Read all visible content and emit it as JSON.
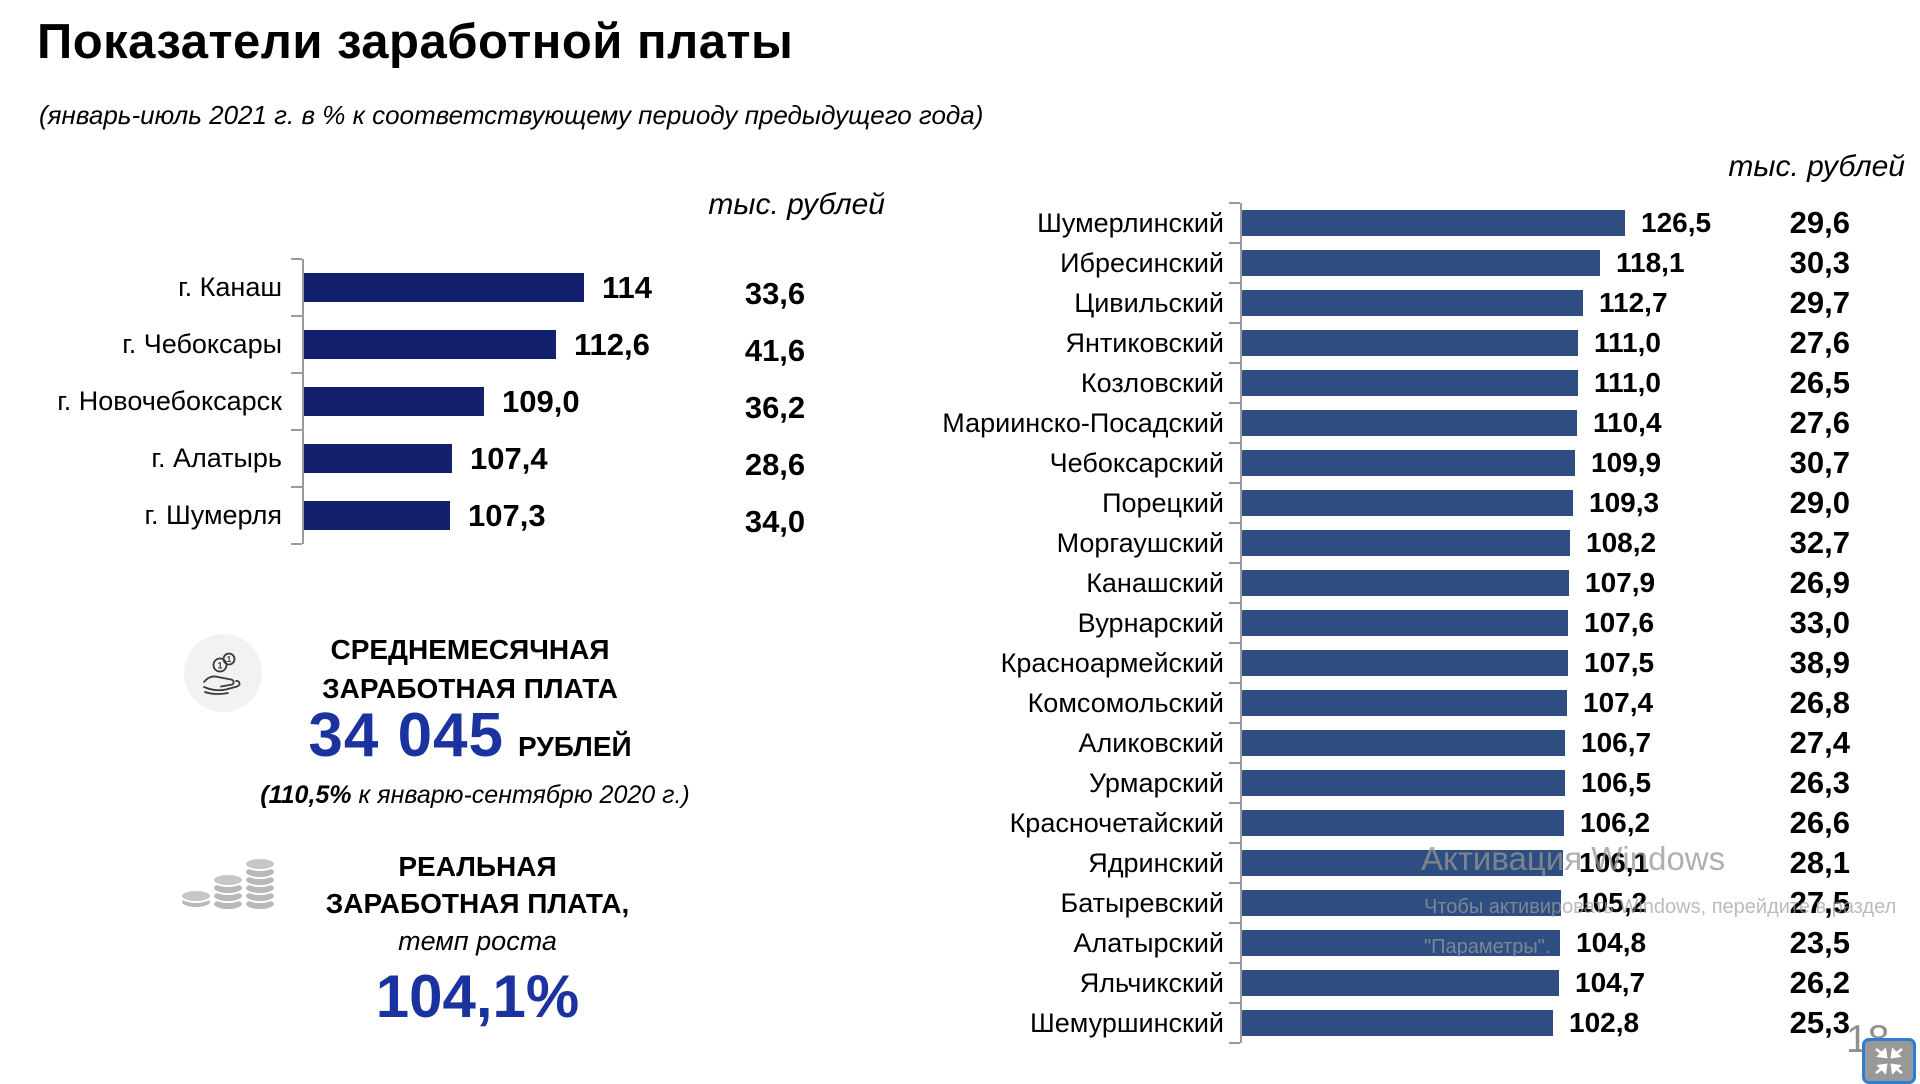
{
  "slide": {
    "title": "Показатели заработной платы",
    "subtitle": "(январь-июль 2021 г. в % к соответствующему периоду предыдущего года)",
    "page_number": "18"
  },
  "colors": {
    "accent_blue": "#1b339e",
    "bar_left": "#13206e",
    "bar_right": "#2e4d80",
    "axis_gray": "#9a9a9a"
  },
  "chart_data": [
    {
      "type": "bar",
      "orientation": "horizontal",
      "unit_header": "тыс. рублей",
      "axis_min": 100,
      "categories": [
        "г. Канаш",
        "г. Чебоксары",
        "г. Новочебоксарск",
        "г. Алатырь",
        "г. Шумерля"
      ],
      "series": [
        {
          "name": "январь-июль 2021 г. в % к соответствующему периоду предыдущего года",
          "values": [
            114,
            112.6,
            109.0,
            107.4,
            107.3
          ],
          "labels": [
            "114",
            "112,6",
            "109,0",
            "107,4",
            "107,3"
          ]
        },
        {
          "name": "среднемесячная заработная плата, тыс. рублей",
          "values": [
            33.6,
            41.6,
            36.2,
            28.6,
            34.0
          ],
          "labels": [
            "33,6",
            "41,6",
            "36,2",
            "28,6",
            "34,0"
          ]
        }
      ]
    },
    {
      "type": "bar",
      "orientation": "horizontal",
      "unit_header": "тыс. рублей",
      "axis_min": 0,
      "categories": [
        "Шумерлинский",
        "Ибресинский",
        "Цивильский",
        "Янтиковский",
        "Козловский",
        "Мариинско-Посадский",
        "Чебоксарский",
        "Порецкий",
        "Моргаушский",
        "Канашский",
        "Вурнарский",
        "Красноармейский",
        "Комсомольский",
        "Аликовский",
        "Урмарский",
        "Красночетайский",
        "Ядринский",
        "Батыревский",
        "Алатырский",
        "Яльчикский",
        "Шемуршинский"
      ],
      "series": [
        {
          "name": "январь-июль 2021 г. в % к соответствующему периоду предыдущего года",
          "values": [
            126.5,
            118.1,
            112.7,
            111.0,
            111.0,
            110.4,
            109.9,
            109.3,
            108.2,
            107.9,
            107.6,
            107.5,
            107.4,
            106.7,
            106.5,
            106.2,
            106.1,
            105.2,
            104.8,
            104.7,
            102.8
          ],
          "labels": [
            "126,5",
            "118,1",
            "112,7",
            "111,0",
            "111,0",
            "110,4",
            "109,9",
            "109,3",
            "108,2",
            "107,9",
            "107,6",
            "107,5",
            "107,4",
            "106,7",
            "106,5",
            "106,2",
            "106,1",
            "105,2",
            "104,8",
            "104,7",
            "102,8"
          ]
        },
        {
          "name": "среднемесячная заработная плата, тыс. рублей",
          "values": [
            29.6,
            30.3,
            29.7,
            27.6,
            26.5,
            27.6,
            30.7,
            29.0,
            32.7,
            26.9,
            33.0,
            38.9,
            26.8,
            27.4,
            26.3,
            26.6,
            28.1,
            27.5,
            23.5,
            26.2,
            25.3
          ],
          "labels": [
            "29,6",
            "30,3",
            "29,7",
            "27,6",
            "26,5",
            "27,6",
            "30,7",
            "29,0",
            "32,7",
            "26,9",
            "33,0",
            "38,9",
            "26,8",
            "27,4",
            "26,3",
            "26,6",
            "28,1",
            "27,5",
            "23,5",
            "26,2",
            "25,3"
          ]
        }
      ]
    }
  ],
  "summary": {
    "avg": {
      "line1": "СРЕДНЕМЕСЯЧНАЯ",
      "line2": "ЗАРАБОТНАЯ ПЛАТА",
      "value": "34 045",
      "unit": "РУБЛЕЙ",
      "note_bold": "(110,5%",
      "note_rest": " к январю-сентябрю 2020 г.)"
    },
    "real": {
      "line1": "РЕАЛЬНАЯ",
      "line2": "ЗАРАБОТНАЯ ПЛАТА,",
      "subtitle": "темп роста",
      "value": "104,1%"
    }
  },
  "watermark": {
    "line1": "Активация Windows",
    "line2": "Чтобы активировать Windows, перейдите в раздел",
    "line3": "\"Параметры\"."
  }
}
